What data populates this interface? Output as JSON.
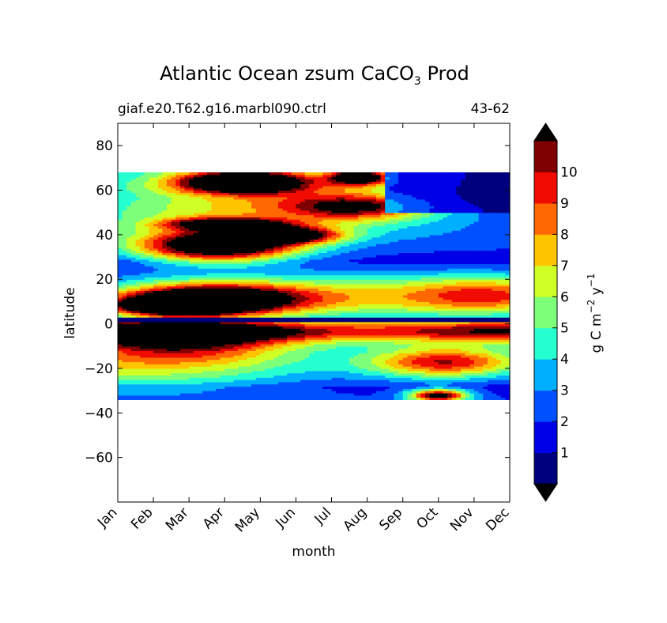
{
  "chart_data": {
    "type": "heatmap",
    "title_main": "Atlantic Ocean zsum CaCO",
    "title_sub": "3",
    "title_tail": "Prod",
    "subtitle_left": "giaf.e20.T62.g16.marbl090.ctrl",
    "subtitle_right": "43-62",
    "xlabel": "month",
    "ylabel": "latitude",
    "x_ticks": [
      "Jan",
      "Feb",
      "Mar",
      "Apr",
      "May",
      "Jun",
      "Jul",
      "Aug",
      "Sep",
      "Oct",
      "Nov",
      "Dec"
    ],
    "xlim": [
      0,
      11
    ],
    "ylim": [
      -80,
      90
    ],
    "y_ticks": [
      80,
      60,
      40,
      20,
      0,
      -20,
      -40,
      -60
    ],
    "y_tick_labels": [
      "80",
      "60",
      "40",
      "20",
      "0",
      "−20",
      "−40",
      "−60"
    ],
    "data_lat_range": [
      -34,
      68
    ],
    "colorbar": {
      "label_main": "g C m",
      "label_exp1": "−2",
      "label_mid": " y",
      "label_exp2": "−1",
      "levels": [
        0,
        1,
        2,
        3,
        4,
        5,
        6,
        7,
        8,
        9,
        10,
        11
      ],
      "tick_labels": [
        "1",
        "2",
        "3",
        "4",
        "5",
        "6",
        "7",
        "8",
        "9",
        "10"
      ],
      "colors": [
        "#00007f",
        "#0000e6",
        "#0050ff",
        "#00b0ff",
        "#26ffd0",
        "#7dff7a",
        "#d0ff26",
        "#ffc400",
        "#ff6800",
        "#f00c00",
        "#7f0000"
      ],
      "over_color": "#000000",
      "under_color": "#000000",
      "extend": "both"
    },
    "features": [
      {
        "month": 3.5,
        "lat": 64,
        "sx": 1.3,
        "sy": 3.5,
        "amp": 11.5
      },
      {
        "month": 6.8,
        "lat": 66,
        "sx": 0.6,
        "sy": 2.5,
        "amp": 10
      },
      {
        "month": 2.8,
        "lat": 35,
        "sx": 1.6,
        "sy": 5,
        "amp": 12
      },
      {
        "month": 4.8,
        "lat": 40,
        "sx": 1.0,
        "sy": 2.5,
        "amp": 9
      },
      {
        "month": 2.5,
        "lat": 11,
        "sx": 1.8,
        "sy": 5,
        "amp": 12
      },
      {
        "month": 1.5,
        "lat": 8,
        "sx": 1.2,
        "sy": 3,
        "amp": 8
      },
      {
        "month": 6.8,
        "lat": 53,
        "sx": 1.4,
        "sy": 4,
        "amp": 6.5
      },
      {
        "month": 3.0,
        "lat": 45,
        "sx": 1.2,
        "sy": 2,
        "amp": 8
      },
      {
        "month": 9.2,
        "lat": -17,
        "sx": 1.5,
        "sy": 5,
        "amp": 7.5
      },
      {
        "month": 9.0,
        "lat": -32,
        "sx": 0.6,
        "sy": 2,
        "amp": 10
      },
      {
        "month": 1.8,
        "lat": -8,
        "sx": 2.2,
        "sy": 6,
        "amp": 7
      },
      {
        "month": 0.5,
        "lat": -20,
        "sx": 3.5,
        "sy": 8,
        "amp": 4
      },
      {
        "month": 2.0,
        "lat": 55,
        "sx": 3,
        "sy": 10,
        "amp": 3.5
      },
      {
        "month": 5.5,
        "lat": 55,
        "sx": 2.5,
        "sy": 10,
        "amp": 3.5
      },
      {
        "month": 10.5,
        "lat": 13,
        "sx": 1.5,
        "sy": 6,
        "amp": 4.5
      },
      {
        "month": 7.0,
        "lat": 12,
        "sx": 3.5,
        "sy": 7,
        "amp": 4.5
      }
    ]
  }
}
